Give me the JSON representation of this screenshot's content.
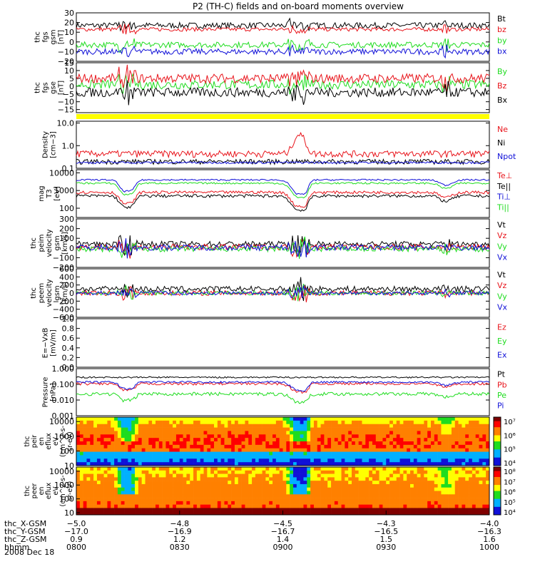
{
  "title": "P2 (TH-C) fields and on-board moments overview",
  "date_label": "2008 Dec 18",
  "colors": {
    "black": "#000000",
    "red": "#e8141b",
    "green": "#1fdc1f",
    "blue": "#1010d8",
    "yellow": "#ffff00",
    "axis": "#000000"
  },
  "panels": [
    {
      "id": "fgs-gsm",
      "ylabel": [
        "thc",
        "fgs",
        "gsm",
        "[nT]"
      ],
      "ylim": [
        -20,
        30
      ],
      "ticks": [
        "30",
        "20",
        "10",
        "0",
        "−10",
        "−20"
      ],
      "tick_values": [
        30,
        20,
        10,
        0,
        -10,
        -20
      ],
      "log": false,
      "legend": [
        {
          "text": "Bt",
          "color": "#000000"
        },
        {
          "text": "bz",
          "color": "#e8141b"
        },
        {
          "text": "by",
          "color": "#1fdc1f"
        },
        {
          "text": "bx",
          "color": "#1010d8"
        }
      ],
      "series_levels": [
        {
          "name": "Bt",
          "color": "#000000",
          "base": 17,
          "amp": 3
        },
        {
          "name": "bz",
          "color": "#e8141b",
          "base": 13,
          "amp": 2
        },
        {
          "name": "by",
          "color": "#1fdc1f",
          "base": -3,
          "amp": 3
        },
        {
          "name": "bx",
          "color": "#1010d8",
          "base": -10,
          "amp": 3
        }
      ]
    },
    {
      "id": "fgs-gse",
      "ylabel": [
        "thc",
        "fgs",
        "gse",
        "[nT]"
      ],
      "ylim": [
        -17,
        15
      ],
      "ticks": [
        "15",
        "10",
        "5",
        "0",
        "−5",
        "−10",
        "−15"
      ],
      "tick_values": [
        15,
        10,
        5,
        0,
        -5,
        -10,
        -15
      ],
      "log": false,
      "legend": [
        {
          "text": "By",
          "color": "#1fdc1f"
        },
        {
          "text": "Bz",
          "color": "#e8141b"
        },
        {
          "text": "Bx",
          "color": "#000000"
        }
      ],
      "series_levels": [
        {
          "name": "By",
          "color": "#1fdc1f",
          "base": 1,
          "amp": 3
        },
        {
          "name": "Bz",
          "color": "#e8141b",
          "base": 5,
          "amp": 3
        },
        {
          "name": "Bx",
          "color": "#000000",
          "base": -4,
          "amp": 3
        }
      ]
    },
    {
      "id": "density",
      "ylabel": [
        "Density",
        "[cm−3]"
      ],
      "ylim": [
        0.1,
        12
      ],
      "ticks": [
        "10.0",
        "1.0",
        "0.1"
      ],
      "tick_values": [
        10,
        1,
        0.1
      ],
      "log": true,
      "legend": [
        {
          "text": "Ne",
          "color": "#e8141b"
        },
        {
          "text": "Ni",
          "color": "#000000"
        },
        {
          "text": "Npot",
          "color": "#1010d8"
        }
      ],
      "series_levels": [
        {
          "name": "Ne",
          "color": "#e8141b",
          "base": 0.45,
          "amp": 0.15
        },
        {
          "name": "Ni",
          "color": "#000000",
          "base": 0.2,
          "amp": 0.05
        },
        {
          "name": "Npot",
          "color": "#1010d8",
          "base": 0.18,
          "amp": 0.02
        }
      ]
    },
    {
      "id": "temperature",
      "ylabel": [
        "mag",
        "T3",
        "[eV]"
      ],
      "ylim": [
        30,
        15000
      ],
      "ticks": [
        "10000",
        "1000",
        "100"
      ],
      "tick_values": [
        10000,
        1000,
        100
      ],
      "log": true,
      "legend": [
        {
          "text": "Te⊥",
          "color": "#e8141b"
        },
        {
          "text": "Te||",
          "color": "#000000"
        },
        {
          "text": "Ti⊥",
          "color": "#1010d8"
        },
        {
          "text": "Ti||",
          "color": "#1fdc1f"
        }
      ],
      "series_levels": [
        {
          "name": "Ti⊥",
          "color": "#1010d8",
          "base": 4000,
          "amp": 400
        },
        {
          "name": "Ti||",
          "color": "#1fdc1f",
          "base": 2600,
          "amp": 300
        },
        {
          "name": "Te⊥",
          "color": "#e8141b",
          "base": 800,
          "amp": 150
        },
        {
          "name": "Te||",
          "color": "#000000",
          "base": 500,
          "amp": 100
        }
      ]
    },
    {
      "id": "peim-velocity",
      "ylabel": [
        "thc",
        "peim",
        "velocity",
        "gsm",
        "[km/s]"
      ],
      "ylim": [
        -200,
        300
      ],
      "ticks": [
        "300",
        "200",
        "100",
        "0",
        "−100",
        "−200"
      ],
      "tick_values": [
        300,
        200,
        100,
        0,
        -100,
        -200
      ],
      "log": false,
      "legend": [
        {
          "text": "Vt",
          "color": "#000000"
        },
        {
          "text": "Vz",
          "color": "#e8141b"
        },
        {
          "text": "Vy",
          "color": "#1fdc1f"
        },
        {
          "text": "Vx",
          "color": "#1010d8"
        }
      ],
      "series_levels": [
        {
          "name": "Vt",
          "color": "#000000",
          "base": 40,
          "amp": 30
        },
        {
          "name": "Vz",
          "color": "#e8141b",
          "base": 10,
          "amp": 30
        },
        {
          "name": "Vy",
          "color": "#1fdc1f",
          "base": -10,
          "amp": 30
        },
        {
          "name": "Vx",
          "color": "#1010d8",
          "base": 5,
          "amp": 30
        }
      ]
    },
    {
      "id": "peem-velocity",
      "ylabel": [
        "thc",
        "peem",
        "velocity",
        "gsm",
        "[km/s]"
      ],
      "ylim": [
        -600,
        600
      ],
      "ticks": [
        "600",
        "400",
        "200",
        "0",
        "−200",
        "−400",
        "−600"
      ],
      "tick_values": [
        600,
        400,
        200,
        0,
        -200,
        -400,
        -600
      ],
      "log": false,
      "legend": [
        {
          "text": "Vt",
          "color": "#000000"
        },
        {
          "text": "Vz",
          "color": "#e8141b"
        },
        {
          "text": "Vy",
          "color": "#1fdc1f"
        },
        {
          "text": "Vx",
          "color": "#1010d8"
        }
      ],
      "series_levels": [
        {
          "name": "Vt",
          "color": "#000000",
          "base": 100,
          "amp": 70
        },
        {
          "name": "Vz",
          "color": "#e8141b",
          "base": 0,
          "amp": 60
        },
        {
          "name": "Vy",
          "color": "#1fdc1f",
          "base": 0,
          "amp": 50
        },
        {
          "name": "Vx",
          "color": "#1010d8",
          "base": 0,
          "amp": 50
        }
      ]
    },
    {
      "id": "efield",
      "ylabel": [
        "E=−VxB",
        "[mV/m]"
      ],
      "ylim": [
        0,
        1
      ],
      "ticks": [
        "1.0",
        "0.8",
        "0.6",
        "0.4",
        "0.2",
        "0.0"
      ],
      "tick_values": [
        1.0,
        0.8,
        0.6,
        0.4,
        0.2,
        0.0
      ],
      "log": false,
      "legend": [
        {
          "text": "Ez",
          "color": "#e8141b"
        },
        {
          "text": "Ey",
          "color": "#1fdc1f"
        },
        {
          "text": "Ex",
          "color": "#1010d8"
        }
      ],
      "series_levels": []
    },
    {
      "id": "pressure",
      "ylabel": [
        "Pressure",
        "[nPa]"
      ],
      "ylim": [
        0.001,
        1
      ],
      "ticks": [
        "1.000",
        "0.100",
        "0.010",
        "0.001"
      ],
      "tick_values": [
        1,
        0.1,
        0.01,
        0.001
      ],
      "log": true,
      "legend": [
        {
          "text": "Pt",
          "color": "#000000"
        },
        {
          "text": "Pb",
          "color": "#e8141b"
        },
        {
          "text": "Pe",
          "color": "#1fdc1f"
        },
        {
          "text": "Pi",
          "color": "#1010d8"
        }
      ],
      "series_levels": [
        {
          "name": "Pt",
          "color": "#000000",
          "base": 0.28,
          "amp": 0.03
        },
        {
          "name": "Pb",
          "color": "#e8141b",
          "base": 0.11,
          "amp": 0.02
        },
        {
          "name": "Pi",
          "color": "#1010d8",
          "base": 0.14,
          "amp": 0.02
        },
        {
          "name": "Pe",
          "color": "#1fdc1f",
          "base": 0.025,
          "amp": 0.006
        }
      ]
    }
  ],
  "spectrograms": [
    {
      "id": "peir-eflux",
      "ylabel": [
        "thc",
        "peir",
        "en",
        "eflux",
        "eV",
        "(cm^2-s-",
        "sr-eV)"
      ],
      "ylim": [
        10,
        20000
      ],
      "ticks": [
        "10000",
        "1000",
        "100",
        "10"
      ],
      "tick_values": [
        10000,
        1000,
        100,
        10
      ],
      "colorbar_ticks": [
        "10⁷",
        "10⁶",
        "10⁵",
        "10⁴"
      ]
    },
    {
      "id": "peer-eflux",
      "ylabel": [
        "thc",
        "peer",
        "en",
        "eflux",
        "eV",
        "(cm^2-s-",
        "sr-eV)"
      ],
      "ylim": [
        7,
        20000
      ],
      "ticks": [
        "10000",
        "1000",
        "100",
        "10"
      ],
      "tick_values": [
        10000,
        1000,
        100,
        10
      ],
      "colorbar_ticks": [
        "10⁸",
        "10⁷",
        "10⁶",
        "10⁵",
        "10⁴"
      ]
    }
  ],
  "chart_data": {
    "type": "line",
    "title": "P2 (TH-C) fields and on-board moments overview",
    "x": [
      "0800",
      "0830",
      "0900",
      "0930",
      "1000"
    ],
    "xlim": [
      "0800",
      "1000"
    ],
    "ephemeris_labels": [
      "thc_X-GSM",
      "thc_Y-GSM",
      "thc_Z-GSM",
      "hhmm",
      "2008 Dec 18"
    ],
    "ephemeris": {
      "thc_X-GSM": [
        "−5.0",
        "−4.8",
        "−4.5",
        "−4.3",
        "−4.0"
      ],
      "thc_Y-GSM": [
        "−17.0",
        "−16.9",
        "−16.7",
        "−16.5",
        "−16.3"
      ],
      "thc_Z-GSM": [
        "0.9",
        "1.2",
        "1.4",
        "1.5",
        "1.6"
      ],
      "hhmm": [
        "0800",
        "0830",
        "0900",
        "0930",
        "1000"
      ]
    },
    "grid": false
  }
}
